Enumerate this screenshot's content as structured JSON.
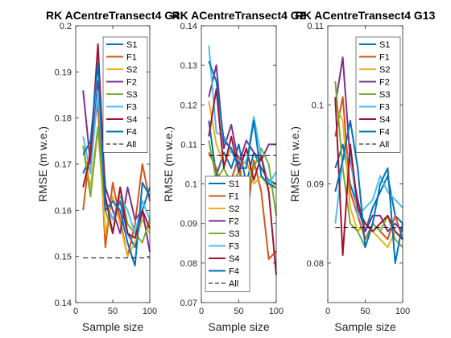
{
  "figure": {
    "background": "#ffffff"
  },
  "series_style": [
    {
      "name": "S1",
      "color": "#0072BD",
      "dash": false
    },
    {
      "name": "F1",
      "color": "#D95319",
      "dash": false
    },
    {
      "name": "S2",
      "color": "#EDB120",
      "dash": false
    },
    {
      "name": "F2",
      "color": "#7E2F8E",
      "dash": false
    },
    {
      "name": "S3",
      "color": "#77AC30",
      "dash": false
    },
    {
      "name": "F3",
      "color": "#4DBEEE",
      "dash": false
    },
    {
      "name": "S4",
      "color": "#A2142F",
      "dash": false
    },
    {
      "name": "F4",
      "color": "#0072BD",
      "dash": false
    },
    {
      "name": "All",
      "color": "#000000",
      "dash": true
    }
  ],
  "chart_data": [
    {
      "type": "line",
      "title": "RK ACentreTransect4 G4",
      "xlabel": "Sample size",
      "ylabel": "RMSE (m w.e.)",
      "xlim": [
        0,
        100
      ],
      "ylim": [
        0.14,
        0.2
      ],
      "xticks": [
        "0",
        "50",
        "100"
      ],
      "yticks": [
        "0.14",
        "0.15",
        "0.16",
        "0.17",
        "0.18",
        "0.19",
        "0.2"
      ],
      "legend_position": "top-right",
      "x": [
        10,
        20,
        30,
        40,
        50,
        60,
        70,
        80,
        90,
        100
      ],
      "series": [
        {
          "name": "S1",
          "values": [
            0.168,
            0.172,
            0.185,
            0.162,
            0.158,
            0.162,
            0.155,
            0.152,
            0.16,
            0.165
          ]
        },
        {
          "name": "F1",
          "values": [
            0.16,
            0.174,
            0.183,
            0.152,
            0.166,
            0.158,
            0.15,
            0.157,
            0.17,
            0.162
          ]
        },
        {
          "name": "S2",
          "values": [
            0.174,
            0.165,
            0.178,
            0.155,
            0.163,
            0.157,
            0.15,
            0.153,
            0.158,
            0.155
          ]
        },
        {
          "name": "F2",
          "values": [
            0.186,
            0.17,
            0.188,
            0.165,
            0.16,
            0.155,
            0.165,
            0.158,
            0.16,
            0.151
          ]
        },
        {
          "name": "S3",
          "values": [
            0.174,
            0.163,
            0.178,
            0.16,
            0.155,
            0.165,
            0.157,
            0.155,
            0.153,
            0.158
          ]
        },
        {
          "name": "F3",
          "values": [
            0.176,
            0.168,
            0.186,
            0.162,
            0.158,
            0.163,
            0.16,
            0.155,
            0.162,
            0.158
          ]
        },
        {
          "name": "S4",
          "values": [
            0.165,
            0.172,
            0.196,
            0.163,
            0.155,
            0.165,
            0.155,
            0.154,
            0.16,
            0.156
          ]
        },
        {
          "name": "F4",
          "values": [
            0.172,
            0.175,
            0.192,
            0.16,
            0.162,
            0.16,
            0.153,
            0.148,
            0.166,
            0.163
          ]
        },
        {
          "name": "All",
          "values": [
            0.1497,
            0.1497,
            0.1497,
            0.1497,
            0.1497,
            0.1497,
            0.1497,
            0.1497,
            0.1497,
            0.1497
          ]
        }
      ]
    },
    {
      "type": "line",
      "title": "RK ACentreTransect4 G2",
      "xlabel": "Sample size",
      "ylabel": "RMSE (m w.e.)",
      "xlim": [
        0,
        100
      ],
      "ylim": [
        0.07,
        0.14
      ],
      "xticks": [
        "0",
        "50",
        "100"
      ],
      "yticks": [
        "0.07",
        "0.08",
        "0.09",
        "0.1",
        "0.11",
        "0.12",
        "0.13",
        "0.14"
      ],
      "legend_position": "bottom-left",
      "x": [
        10,
        20,
        30,
        40,
        50,
        60,
        70,
        80,
        90,
        100
      ],
      "series": [
        {
          "name": "S1",
          "values": [
            0.116,
            0.102,
            0.108,
            0.104,
            0.11,
            0.1,
            0.108,
            0.104,
            0.101,
            0.1
          ]
        },
        {
          "name": "F1",
          "values": [
            0.108,
            0.104,
            0.096,
            0.101,
            0.107,
            0.09,
            0.106,
            0.098,
            0.081,
            0.083
          ]
        },
        {
          "name": "S2",
          "values": [
            0.121,
            0.11,
            0.105,
            0.109,
            0.104,
            0.106,
            0.1,
            0.102,
            0.099,
            0.1
          ]
        },
        {
          "name": "F2",
          "values": [
            0.122,
            0.13,
            0.109,
            0.115,
            0.105,
            0.111,
            0.108,
            0.106,
            0.11,
            0.11
          ]
        },
        {
          "name": "S3",
          "values": [
            0.111,
            0.101,
            0.104,
            0.1,
            0.103,
            0.098,
            0.104,
            0.109,
            0.105,
            0.092
          ]
        },
        {
          "name": "F3",
          "values": [
            0.135,
            0.113,
            0.112,
            0.108,
            0.106,
            0.105,
            0.117,
            0.107,
            0.1,
            0.103
          ]
        },
        {
          "name": "S4",
          "values": [
            0.112,
            0.124,
            0.104,
            0.112,
            0.103,
            0.109,
            0.101,
            0.107,
            0.098,
            0.077
          ]
        },
        {
          "name": "F4",
          "values": [
            0.131,
            0.126,
            0.111,
            0.109,
            0.104,
            0.104,
            0.116,
            0.102,
            0.1,
            0.099
          ]
        },
        {
          "name": "All",
          "values": [
            0.1072,
            0.1072,
            0.1072,
            0.1072,
            0.1072,
            0.1072,
            0.1072,
            0.1072,
            0.1072,
            0.1072
          ]
        }
      ]
    },
    {
      "type": "line",
      "title": "RK ACentreTransect4 G13",
      "xlabel": "Sample size",
      "ylabel": "RMSE (m w.e.)",
      "xlim": [
        0,
        100
      ],
      "ylim": [
        0.075,
        0.11
      ],
      "xticks": [
        "0",
        "50",
        "100"
      ],
      "yticks": [
        "0.08",
        "0.09",
        "0.1",
        "0.11"
      ],
      "legend_position": "top-right",
      "x": [
        10,
        20,
        30,
        40,
        50,
        60,
        70,
        80,
        90,
        100
      ],
      "series": [
        {
          "name": "S1",
          "values": [
            0.092,
            0.095,
            0.09,
            0.087,
            0.084,
            0.087,
            0.089,
            0.091,
            0.086,
            0.085
          ]
        },
        {
          "name": "F1",
          "values": [
            0.096,
            0.101,
            0.089,
            0.086,
            0.083,
            0.085,
            0.084,
            0.083,
            0.086,
            0.083
          ]
        },
        {
          "name": "S2",
          "values": [
            0.1,
            0.098,
            0.087,
            0.084,
            0.085,
            0.084,
            0.083,
            0.082,
            0.084,
            0.083
          ]
        },
        {
          "name": "F2",
          "values": [
            0.1,
            0.106,
            0.093,
            0.088,
            0.084,
            0.086,
            0.086,
            0.084,
            0.085,
            0.084
          ]
        },
        {
          "name": "S3",
          "values": [
            0.103,
            0.092,
            0.085,
            0.084,
            0.082,
            0.085,
            0.084,
            0.086,
            0.083,
            0.082
          ]
        },
        {
          "name": "F3",
          "values": [
            0.085,
            0.093,
            0.094,
            0.086,
            0.087,
            0.088,
            0.091,
            0.089,
            0.088,
            0.087
          ]
        },
        {
          "name": "S4",
          "values": [
            0.101,
            0.081,
            0.095,
            0.087,
            0.085,
            0.084,
            0.085,
            0.086,
            0.084,
            0.083
          ]
        },
        {
          "name": "F4",
          "values": [
            0.089,
            0.093,
            0.098,
            0.092,
            0.082,
            0.085,
            0.09,
            0.092,
            0.08,
            0.085
          ]
        },
        {
          "name": "All",
          "values": [
            0.0845,
            0.0845,
            0.0845,
            0.0845,
            0.0845,
            0.0845,
            0.0845,
            0.0845,
            0.0845,
            0.0845
          ]
        }
      ]
    }
  ]
}
